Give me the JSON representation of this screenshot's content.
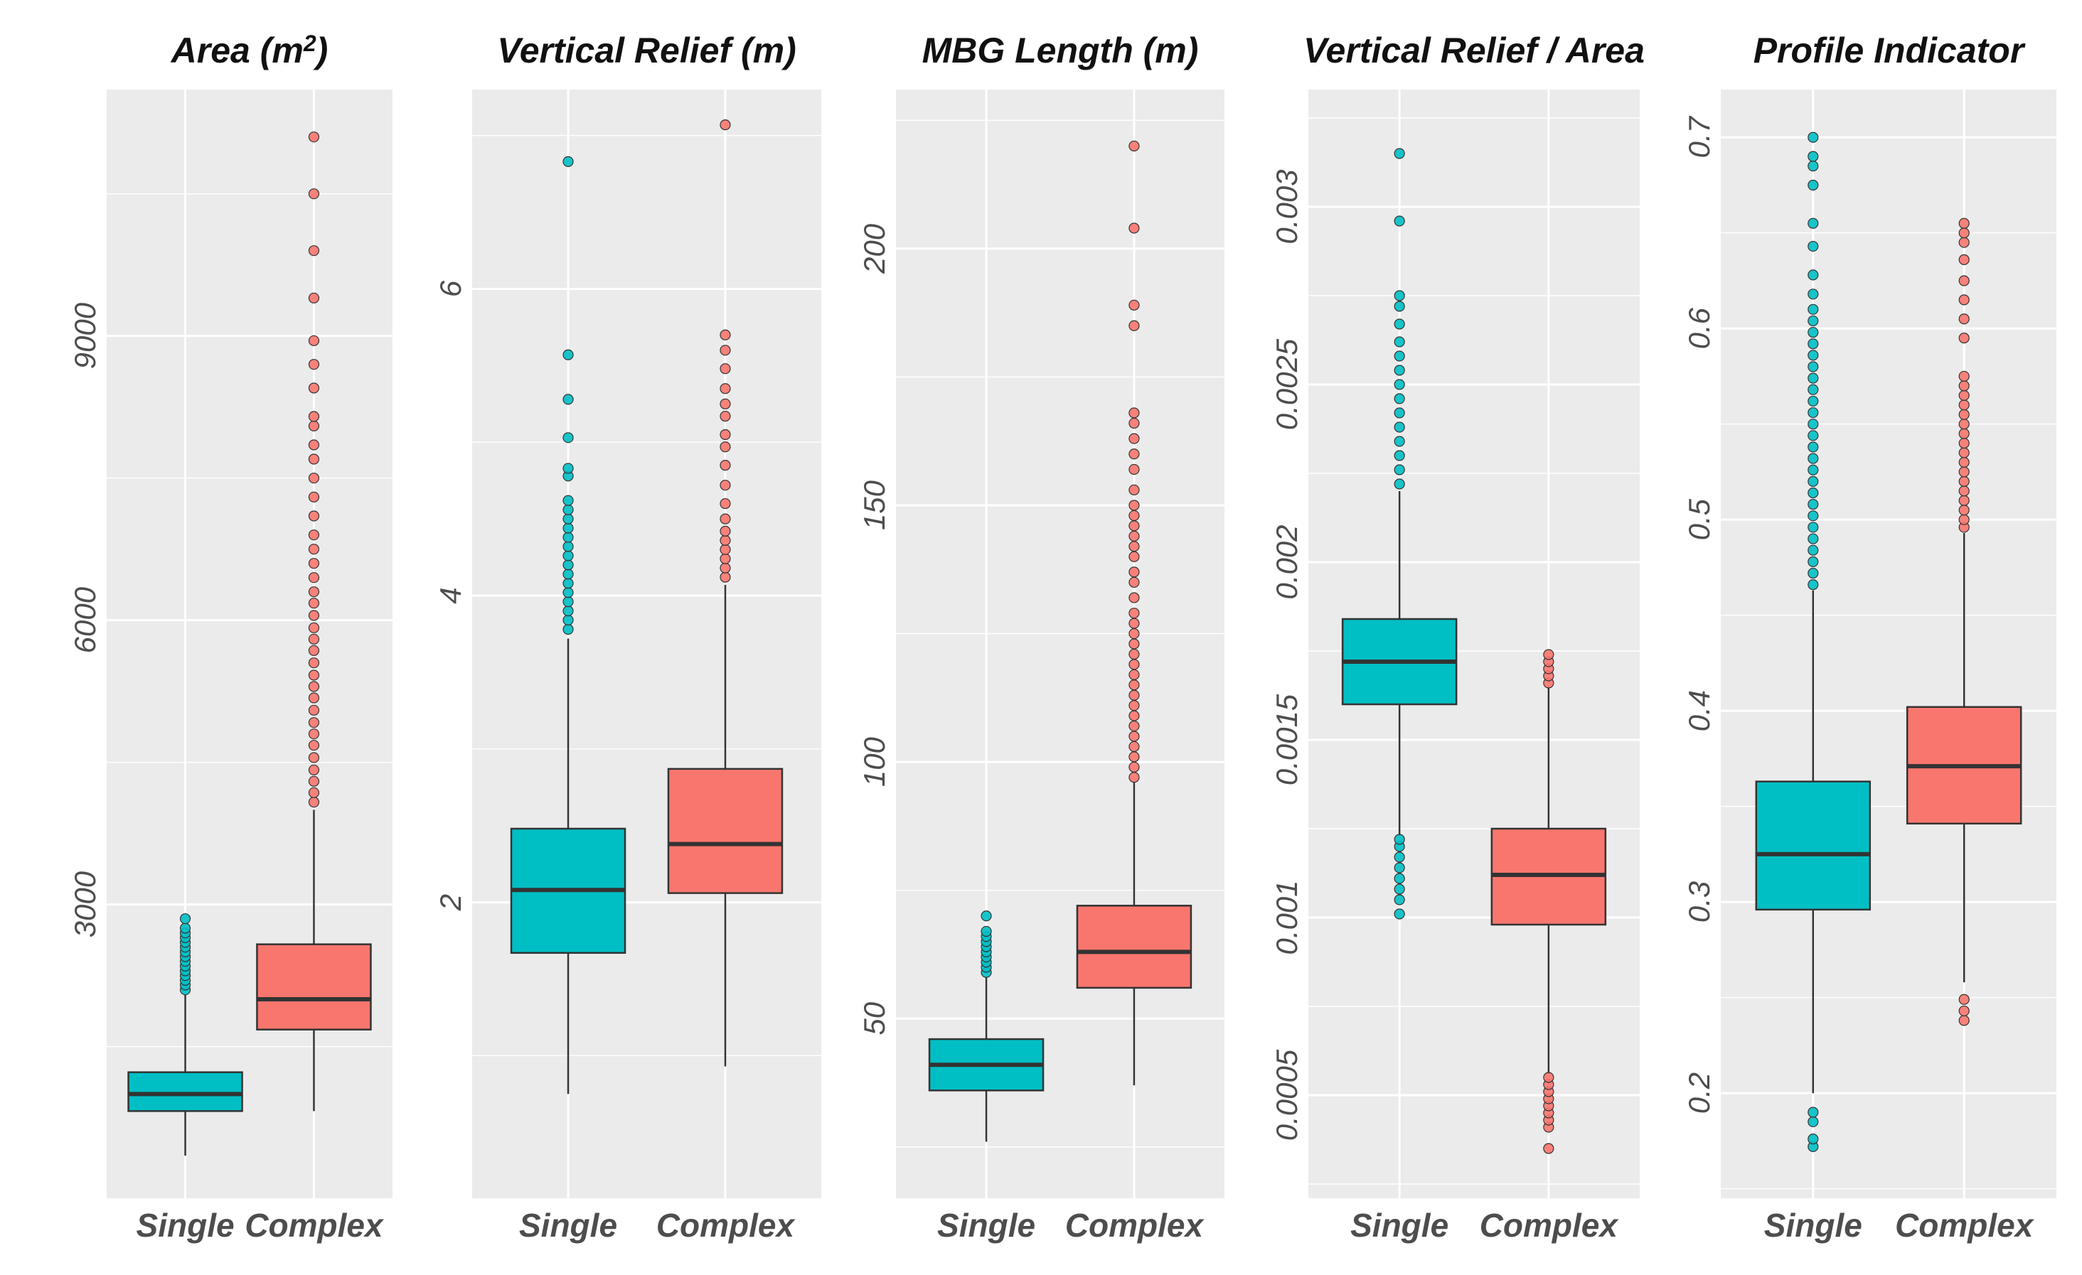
{
  "chart_data": [
    {
      "type": "boxplot",
      "title": "Area (m²)",
      "title_base": "Area (m",
      "title_sup": "2",
      "title_end": ")",
      "categories": [
        "Single",
        "Complex"
      ],
      "yticks": [
        3000,
        6000,
        9000
      ],
      "ytick_labels": [
        "3000",
        "6000",
        "9000"
      ],
      "ylim": [
        -100,
        11600
      ],
      "boxes": [
        {
          "category": "Single",
          "whisker_low": 350,
          "q1": 820,
          "median": 1000,
          "q3": 1230,
          "whisker_high": 2050,
          "outliers": [
            2100,
            2150,
            2200,
            2250,
            2300,
            2350,
            2400,
            2450,
            2500,
            2550,
            2600,
            2650,
            2700,
            2750,
            2850
          ]
        },
        {
          "category": "Complex",
          "whisker_low": 820,
          "q1": 1680,
          "median": 2000,
          "q3": 2580,
          "whisker_high": 4000,
          "outliers": [
            4080,
            4180,
            4300,
            4420,
            4550,
            4680,
            4800,
            4920,
            5050,
            5180,
            5300,
            5420,
            5550,
            5680,
            5800,
            5920,
            6050,
            6180,
            6300,
            6450,
            6600,
            6750,
            6900,
            7100,
            7300,
            7500,
            7700,
            7850,
            8050,
            8150,
            8450,
            8700,
            8950,
            9400,
            9900,
            10500,
            11100
          ]
        }
      ]
    },
    {
      "type": "boxplot",
      "title": "Vertical Relief (m)",
      "categories": [
        "Single",
        "Complex"
      ],
      "yticks": [
        2,
        4,
        6
      ],
      "ytick_labels": [
        "2",
        "4",
        "6"
      ],
      "ylim": [
        0.07,
        7.3
      ],
      "boxes": [
        {
          "category": "Single",
          "whisker_low": 0.75,
          "q1": 1.67,
          "median": 2.08,
          "q3": 2.48,
          "whisker_high": 3.72,
          "outliers": [
            3.78,
            3.84,
            3.9,
            3.96,
            4.02,
            4.08,
            4.14,
            4.2,
            4.26,
            4.32,
            4.38,
            4.44,
            4.5,
            4.56,
            4.62,
            4.78,
            4.83,
            5.03,
            5.28,
            5.57,
            6.83
          ]
        },
        {
          "category": "Complex",
          "whisker_low": 0.93,
          "q1": 2.06,
          "median": 2.38,
          "q3": 2.87,
          "whisker_high": 4.07,
          "outliers": [
            4.12,
            4.18,
            4.24,
            4.3,
            4.36,
            4.42,
            4.5,
            4.6,
            4.72,
            4.85,
            4.97,
            5.05,
            5.17,
            5.25,
            5.35,
            5.48,
            5.6,
            5.7,
            7.07
          ]
        }
      ]
    },
    {
      "type": "boxplot",
      "title": "MBG Length (m)",
      "categories": [
        "Single",
        "Complex"
      ],
      "yticks": [
        50,
        100,
        150,
        200
      ],
      "ytick_labels": [
        "50",
        "100",
        "150",
        "200"
      ],
      "ylim": [
        15,
        231
      ],
      "boxes": [
        {
          "category": "Single",
          "whisker_low": 26,
          "q1": 36,
          "median": 41,
          "q3": 46,
          "whisker_high": 58,
          "outliers": [
            59,
            60,
            61,
            62,
            63,
            64,
            65,
            66,
            67,
            70
          ]
        },
        {
          "category": "Complex",
          "whisker_low": 37,
          "q1": 56,
          "median": 63,
          "q3": 72,
          "whisker_high": 96,
          "outliers": [
            97,
            99,
            101,
            103,
            105,
            107,
            109,
            111,
            113,
            115,
            117,
            119,
            121,
            123,
            125,
            127,
            129,
            132,
            135,
            137,
            140,
            142,
            144,
            146,
            148,
            150,
            153,
            157,
            160,
            163,
            166,
            168,
            185,
            189,
            204,
            220
          ]
        }
      ]
    },
    {
      "type": "boxplot",
      "title": "Vertical Relief / Area",
      "categories": [
        "Single",
        "Complex"
      ],
      "yticks": [
        0.0005,
        0.001,
        0.0015,
        0.002,
        0.0025,
        0.003
      ],
      "ytick_labels": [
        "0.0005",
        "0.001",
        "0.0015",
        "0.002",
        "0.0025",
        "0.003"
      ],
      "ylim": [
        0.00021,
        0.00333
      ],
      "boxes": [
        {
          "category": "Single",
          "whisker_low": 0.00123,
          "q1": 0.0016,
          "median": 0.00172,
          "q3": 0.00184,
          "whisker_high": 0.0022,
          "outliers": [
            0.00101,
            0.00105,
            0.00108,
            0.00111,
            0.00114,
            0.00117,
            0.0012,
            0.00122,
            0.00222,
            0.00226,
            0.0023,
            0.00234,
            0.00238,
            0.00242,
            0.00246,
            0.0025,
            0.00254,
            0.00258,
            0.00262,
            0.00267,
            0.00272,
            0.00275,
            0.00296,
            0.00315
          ]
        },
        {
          "category": "Complex",
          "whisker_low": 0.00056,
          "q1": 0.00098,
          "median": 0.00112,
          "q3": 0.00125,
          "whisker_high": 0.00165,
          "outliers": [
            0.00035,
            0.00041,
            0.00043,
            0.00045,
            0.00047,
            0.00049,
            0.00051,
            0.00053,
            0.00055,
            0.00166,
            0.00168,
            0.0017,
            0.00172,
            0.00174
          ]
        }
      ]
    },
    {
      "type": "boxplot",
      "title": "Profile Indicator",
      "categories": [
        "Single",
        "Complex"
      ],
      "yticks": [
        0.2,
        0.3,
        0.4,
        0.5,
        0.6,
        0.7
      ],
      "ytick_labels": [
        "0.2",
        "0.3",
        "0.4",
        "0.5",
        "0.6",
        "0.7"
      ],
      "ylim": [
        0.145,
        0.725
      ],
      "boxes": [
        {
          "category": "Single",
          "whisker_low": 0.2,
          "q1": 0.296,
          "median": 0.325,
          "q3": 0.363,
          "whisker_high": 0.463,
          "outliers": [
            0.172,
            0.176,
            0.185,
            0.19,
            0.466,
            0.472,
            0.478,
            0.484,
            0.49,
            0.496,
            0.502,
            0.508,
            0.514,
            0.52,
            0.526,
            0.532,
            0.538,
            0.544,
            0.55,
            0.556,
            0.562,
            0.568,
            0.574,
            0.58,
            0.586,
            0.592,
            0.598,
            0.604,
            0.61,
            0.618,
            0.628,
            0.643,
            0.655,
            0.675,
            0.685,
            0.69,
            0.7
          ]
        },
        {
          "category": "Complex",
          "whisker_low": 0.258,
          "q1": 0.341,
          "median": 0.371,
          "q3": 0.402,
          "whisker_high": 0.493,
          "outliers": [
            0.238,
            0.243,
            0.249,
            0.496,
            0.5,
            0.505,
            0.51,
            0.515,
            0.52,
            0.525,
            0.53,
            0.535,
            0.54,
            0.545,
            0.55,
            0.555,
            0.56,
            0.565,
            0.57,
            0.575,
            0.595,
            0.605,
            0.615,
            0.625,
            0.636,
            0.645,
            0.65,
            0.655
          ]
        }
      ]
    }
  ],
  "colors": {
    "single": "#00bfc4",
    "complex": "#f8766d",
    "panel_background": "#ebebeb",
    "gridline": "#ffffff",
    "box_outline": "#333333"
  }
}
